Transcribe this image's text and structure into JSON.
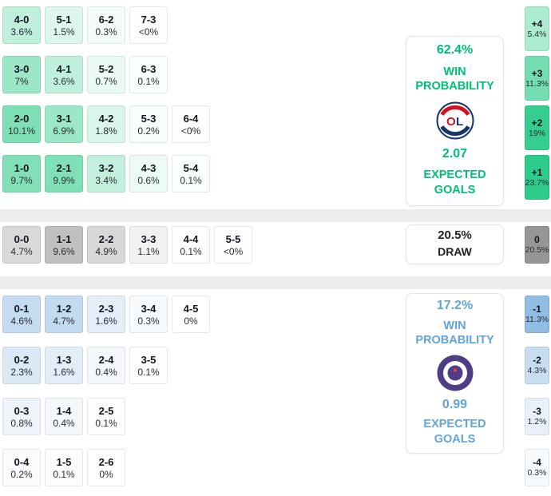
{
  "chart_data": {
    "type": "heatmap",
    "description": "Correct score and goal-margin probability matrix",
    "home": {
      "rows": [
        [
          {
            "score": "4-0",
            "pct": "3.6%"
          },
          {
            "score": "5-1",
            "pct": "1.5%"
          },
          {
            "score": "6-2",
            "pct": "0.3%"
          },
          {
            "score": "7-3",
            "pct": "<0%"
          }
        ],
        [
          {
            "score": "3-0",
            "pct": "7%"
          },
          {
            "score": "4-1",
            "pct": "3.6%"
          },
          {
            "score": "5-2",
            "pct": "0.7%"
          },
          {
            "score": "6-3",
            "pct": "0.1%"
          }
        ],
        [
          {
            "score": "2-0",
            "pct": "10.1%"
          },
          {
            "score": "3-1",
            "pct": "6.9%"
          },
          {
            "score": "4-2",
            "pct": "1.8%"
          },
          {
            "score": "5-3",
            "pct": "0.2%"
          },
          {
            "score": "6-4",
            "pct": "<0%"
          }
        ],
        [
          {
            "score": "1-0",
            "pct": "9.7%"
          },
          {
            "score": "2-1",
            "pct": "9.9%"
          },
          {
            "score": "3-2",
            "pct": "3.4%"
          },
          {
            "score": "4-3",
            "pct": "0.6%"
          },
          {
            "score": "5-4",
            "pct": "0.1%"
          }
        ]
      ],
      "margins": [
        {
          "diff": "+4",
          "pct": "5.4%"
        },
        {
          "diff": "+3",
          "pct": "11.3%"
        },
        {
          "diff": "+2",
          "pct": "19%"
        },
        {
          "diff": "+1",
          "pct": "23.7%"
        }
      ],
      "panel": {
        "probability": "62.4%",
        "probability_label": "WIN PROBABILITY",
        "logo": "olympique-lyonnais-logo",
        "expected_goals": "2.07",
        "expected_goals_label": "EXPECTED GOALS"
      }
    },
    "draw": {
      "row": [
        {
          "score": "0-0",
          "pct": "4.7%"
        },
        {
          "score": "1-1",
          "pct": "9.6%"
        },
        {
          "score": "2-2",
          "pct": "4.9%"
        },
        {
          "score": "3-3",
          "pct": "1.1%"
        },
        {
          "score": "4-4",
          "pct": "0.1%"
        },
        {
          "score": "5-5",
          "pct": "<0%"
        }
      ],
      "margin": {
        "diff": "0",
        "pct": "20.5%"
      },
      "panel": {
        "probability": "20.5%",
        "label": "DRAW"
      }
    },
    "away": {
      "rows": [
        [
          {
            "score": "0-1",
            "pct": "4.6%"
          },
          {
            "score": "1-2",
            "pct": "4.7%"
          },
          {
            "score": "2-3",
            "pct": "1.6%"
          },
          {
            "score": "3-4",
            "pct": "0.3%"
          },
          {
            "score": "4-5",
            "pct": "0%"
          }
        ],
        [
          {
            "score": "0-2",
            "pct": "2.3%"
          },
          {
            "score": "1-3",
            "pct": "1.6%"
          },
          {
            "score": "2-4",
            "pct": "0.4%"
          },
          {
            "score": "3-5",
            "pct": "0.1%"
          }
        ],
        [
          {
            "score": "0-3",
            "pct": "0.8%"
          },
          {
            "score": "1-4",
            "pct": "0.4%"
          },
          {
            "score": "2-5",
            "pct": "0.1%"
          }
        ],
        [
          {
            "score": "0-4",
            "pct": "0.2%"
          },
          {
            "score": "1-5",
            "pct": "0.1%"
          },
          {
            "score": "2-6",
            "pct": "0%"
          }
        ]
      ],
      "margins": [
        {
          "diff": "-1",
          "pct": "11.3%"
        },
        {
          "diff": "-2",
          "pct": "4.3%"
        },
        {
          "diff": "-3",
          "pct": "1.2%"
        },
        {
          "diff": "-4",
          "pct": "0.3%"
        }
      ],
      "panel": {
        "probability": "17.2%",
        "probability_label": "WIN PROBABILITY",
        "logo": "toulouse-fc-logo",
        "expected_goals": "0.99",
        "expected_goals_label": "EXPECTED GOALS"
      }
    }
  },
  "colors": {
    "home_accent": "#00be78",
    "away_accent": "#62a3d8",
    "draw_text": "#222222",
    "home_cell_base": "#2ecc8a",
    "draw_cell_base": "#969696",
    "away_cell_base": "#5b9bd5",
    "divider": "#ececee"
  }
}
